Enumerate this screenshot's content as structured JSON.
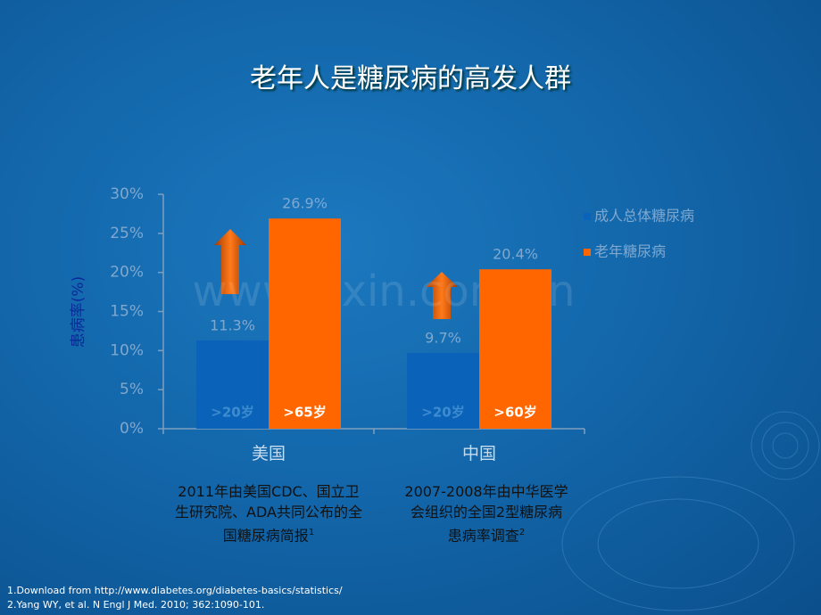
{
  "chart_data": {
    "type": "bar",
    "title": "老年人是糖尿病的高发人群",
    "ylabel": "患病率(%)",
    "categories": [
      "美国",
      "中国"
    ],
    "series": [
      {
        "name": "成人总体糖尿病",
        "color": "#0a63b8",
        "values": [
          11.3,
          9.7
        ],
        "value_labels": [
          "11.3%",
          "9.7%"
        ],
        "bar_labels": [
          ">20岁",
          ">20岁"
        ]
      },
      {
        "name": "老年糖尿病",
        "color": "#ff6600",
        "values": [
          26.9,
          20.4
        ],
        "value_labels": [
          "26.9%",
          "20.4%"
        ],
        "bar_labels": [
          ">65岁",
          ">60岁"
        ]
      }
    ],
    "ylim": [
      0,
      30
    ],
    "yticks": [
      {
        "value": 0,
        "label": "0%"
      },
      {
        "value": 5,
        "label": "5%"
      },
      {
        "value": 10,
        "label": "10%"
      },
      {
        "value": 15,
        "label": "15%"
      },
      {
        "value": 20,
        "label": "20%"
      },
      {
        "value": 25,
        "label": "25%"
      },
      {
        "value": 30,
        "label": "30%"
      }
    ],
    "legend": "right",
    "watermark": "www.zixin.com.cn",
    "notes": [
      {
        "text": "2011年由美国CDC、国立卫生研究院、ADA共同公布的全国糖尿病简报",
        "sup": "1"
      },
      {
        "text": "2007-2008年由中华医学会组织的全国2型糖尿病患病率调查",
        "sup": "2"
      }
    ],
    "footnotes": [
      "1.Download from http://www.diabetes.org/diabetes-basics/statistics/",
      "2.Yang WY, et al. N Engl J Med. 2010; 362:1090-101."
    ]
  }
}
